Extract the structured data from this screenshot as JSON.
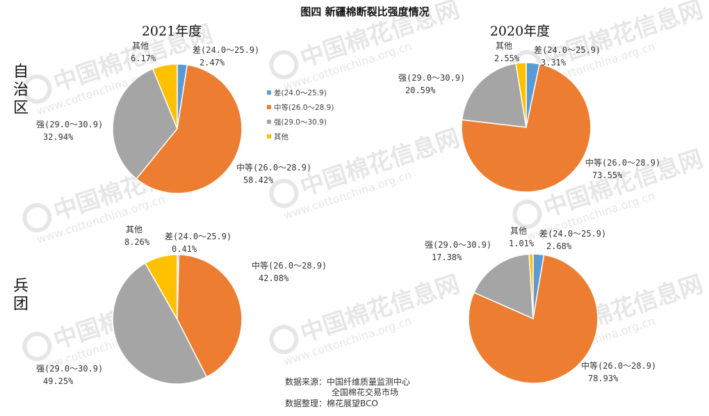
{
  "title": "图四 新疆棉断裂比强度情况",
  "column_titles": [
    "2021年度",
    "2020年度"
  ],
  "row_titles": [
    "自治区",
    "兵团"
  ],
  "watermark": {
    "logo_text": "中国棉花信息网",
    "url": "www.cottonchina.org.cn"
  },
  "legend": {
    "entries": [
      {
        "label": "差(24.0～25.9)",
        "color": "#5b9bd5"
      },
      {
        "label": "中等(26.0～28.9)",
        "color": "#ed7d31"
      },
      {
        "label": "强(29.0～30.9)",
        "color": "#a5a5a5"
      },
      {
        "label": "其他",
        "color": "#ffc000"
      }
    ]
  },
  "source": {
    "line1": "数据来源：中国纤维质量监测中心",
    "line2": "全国棉花交易市场",
    "line3": "数据整理：棉花展望BCO"
  },
  "chart_data": [
    {
      "type": "pie",
      "row": "自治区",
      "year": "2021年度",
      "slices": [
        {
          "name": "差(24.0～25.9)",
          "value": 2.47,
          "label": "2.47%",
          "color": "#5b9bd5"
        },
        {
          "name": "中等(26.0～28.9)",
          "value": 58.42,
          "label": "58.42%",
          "color": "#ed7d31"
        },
        {
          "name": "强(29.0～30.9)",
          "value": 32.94,
          "label": "32.94%",
          "color": "#a5a5a5"
        },
        {
          "name": "其他",
          "value": 6.17,
          "label": "6.17%",
          "color": "#ffc000"
        }
      ]
    },
    {
      "type": "pie",
      "row": "自治区",
      "year": "2020年度",
      "slices": [
        {
          "name": "差(24.0～25.9)",
          "value": 3.31,
          "label": "3.31%",
          "color": "#5b9bd5"
        },
        {
          "name": "中等(26.0～28.9)",
          "value": 73.55,
          "label": "73.55%",
          "color": "#ed7d31"
        },
        {
          "name": "强(29.0～30.9)",
          "value": 20.59,
          "label": "20.59%",
          "color": "#a5a5a5"
        },
        {
          "name": "其他",
          "value": 2.55,
          "label": "2.55%",
          "color": "#ffc000"
        }
      ]
    },
    {
      "type": "pie",
      "row": "兵团",
      "year": "2021年度",
      "slices": [
        {
          "name": "差(24.0～25.9)",
          "value": 0.41,
          "label": "0.41%",
          "color": "#5b9bd5"
        },
        {
          "name": "中等(26.0～28.9)",
          "value": 42.08,
          "label": "42.08%",
          "color": "#ed7d31"
        },
        {
          "name": "强(29.0～30.9)",
          "value": 49.25,
          "label": "49.25%",
          "color": "#a5a5a5"
        },
        {
          "name": "其他",
          "value": 8.26,
          "label": "8.26%",
          "color": "#ffc000"
        }
      ]
    },
    {
      "type": "pie",
      "row": "兵团",
      "year": "2020年度",
      "slices": [
        {
          "name": "差(24.0～25.9)",
          "value": 2.68,
          "label": "2.68%",
          "color": "#5b9bd5"
        },
        {
          "name": "中等(26.0～28.9)",
          "value": 78.93,
          "label": "78.93%",
          "color": "#ed7d31"
        },
        {
          "name": "强(29.0～30.9)",
          "value": 17.38,
          "label": "17.38%",
          "color": "#a5a5a5"
        },
        {
          "name": "其他",
          "value": 1.01,
          "label": "1.01%",
          "color": "#ffc000"
        }
      ]
    }
  ]
}
